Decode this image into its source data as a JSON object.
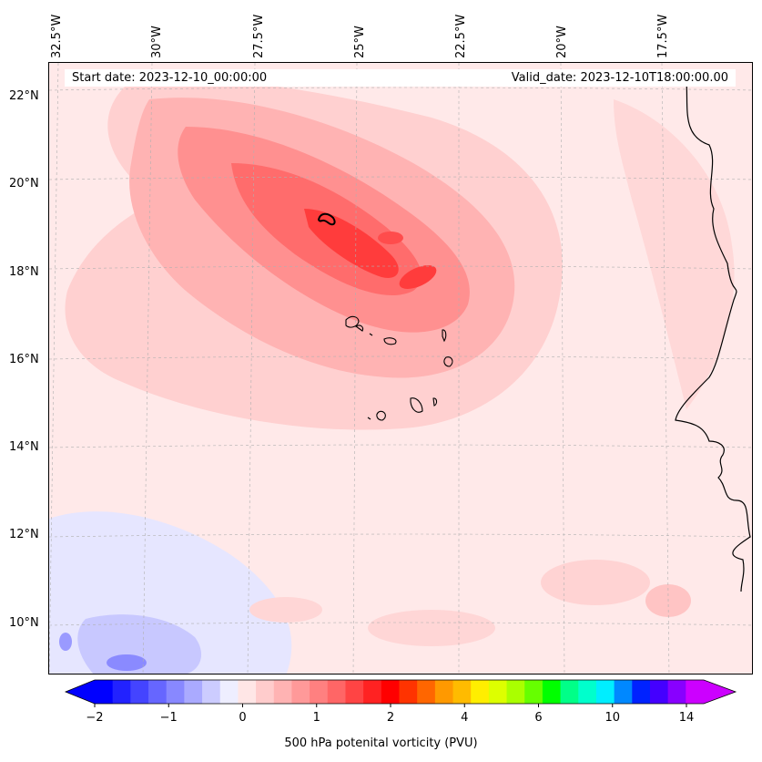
{
  "info": {
    "start_date": "Start date: 2023-12-10_00:00:00",
    "valid_date": "Valid_date: 2023-12-10T18:00:00.00"
  },
  "axes": {
    "lon_labels": [
      "32.5°W",
      "30°W",
      "27.5°W",
      "25°W",
      "22.5°W",
      "20°W",
      "17.5°W"
    ],
    "lat_labels": [
      "22°N",
      "20°N",
      "18°N",
      "16°N",
      "14°N",
      "12°N",
      "10°N"
    ]
  },
  "colorbar": {
    "title": "500 hPa potenital vorticity (PVU)",
    "tick_labels": [
      "−2",
      "−1",
      "0",
      "1",
      "2",
      "4",
      "6",
      "10",
      "14"
    ],
    "colors": [
      "#0000ff",
      "#2222ff",
      "#4444ff",
      "#6666ff",
      "#8888ff",
      "#aaaaff",
      "#ccccff",
      "#eeeeff",
      "#ffe6e6",
      "#ffcccc",
      "#ffb3b3",
      "#ff9999",
      "#ff8080",
      "#ff6666",
      "#ff4444",
      "#ff2222",
      "#ff0000",
      "#ff3300",
      "#ff6600",
      "#ff9900",
      "#ffbb00",
      "#ffee00",
      "#ddff00",
      "#aaff00",
      "#66ff00",
      "#00ff00",
      "#00ff88",
      "#00ffcc",
      "#00eeff",
      "#0088ff",
      "#0022ff",
      "#4400ff",
      "#8800ff",
      "#cc00ff"
    ]
  }
}
